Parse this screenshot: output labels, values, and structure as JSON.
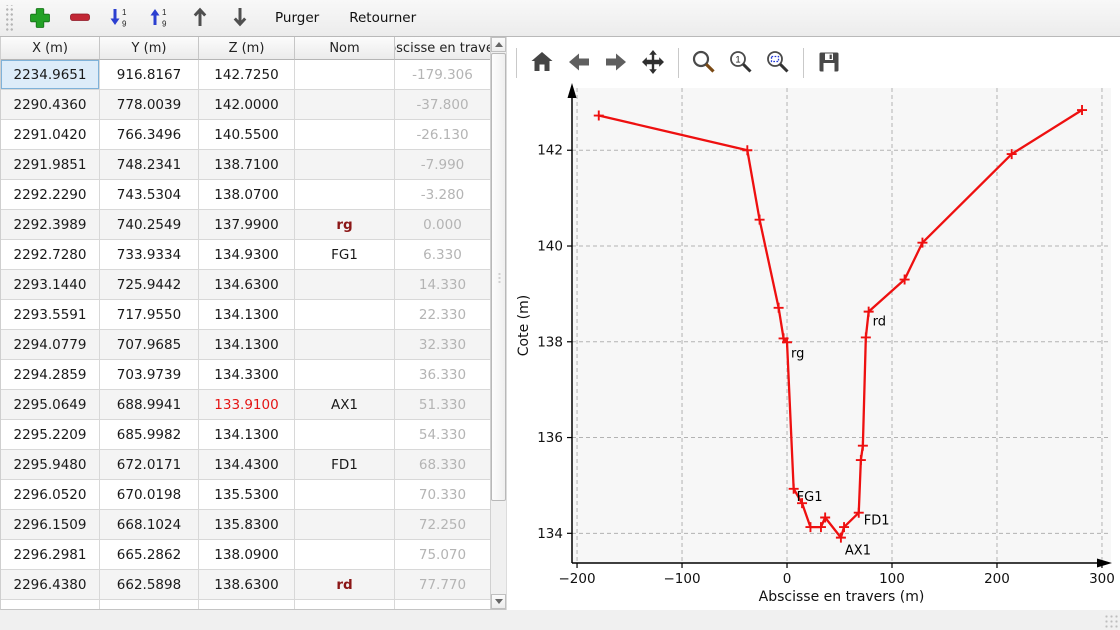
{
  "toolbar": {
    "purger_label": "Purger",
    "retourner_label": "Retourner",
    "icons": [
      "add-point",
      "remove-point",
      "sort-down-1-9",
      "sort-up-1-9",
      "move-up",
      "move-down"
    ]
  },
  "chart_toolbar": {
    "icons": [
      "home",
      "back",
      "forward",
      "pan",
      "zoom",
      "zoom-original",
      "zoom-region",
      "save"
    ]
  },
  "table": {
    "headers": [
      "X (m)",
      "Y (m)",
      "Z (m)",
      "Nom",
      "Abscisse en travers"
    ],
    "rows": [
      {
        "x": "2234.9651",
        "y": "916.8167",
        "z": "142.7250",
        "nom": "",
        "abscisse": "-179.306",
        "selected": true
      },
      {
        "x": "2290.4360",
        "y": "778.0039",
        "z": "142.0000",
        "nom": "",
        "abscisse": "-37.800"
      },
      {
        "x": "2291.0420",
        "y": "766.3496",
        "z": "140.5500",
        "nom": "",
        "abscisse": "-26.130"
      },
      {
        "x": "2291.9851",
        "y": "748.2341",
        "z": "138.7100",
        "nom": "",
        "abscisse": "-7.990"
      },
      {
        "x": "2292.2290",
        "y": "743.5304",
        "z": "138.0700",
        "nom": "",
        "abscisse": "-3.280"
      },
      {
        "x": "2292.3989",
        "y": "740.2549",
        "z": "137.9900",
        "nom": "rg",
        "nom_kind": "limit",
        "abscisse": "0.000"
      },
      {
        "x": "2292.7280",
        "y": "733.9334",
        "z": "134.9300",
        "nom": "FG1",
        "abscisse": "6.330"
      },
      {
        "x": "2293.1440",
        "y": "725.9442",
        "z": "134.6300",
        "nom": "",
        "abscisse": "14.330"
      },
      {
        "x": "2293.5591",
        "y": "717.9550",
        "z": "134.1300",
        "nom": "",
        "abscisse": "22.330"
      },
      {
        "x": "2294.0779",
        "y": "707.9685",
        "z": "134.1300",
        "nom": "",
        "abscisse": "32.330"
      },
      {
        "x": "2294.2859",
        "y": "703.9739",
        "z": "134.3300",
        "nom": "",
        "abscisse": "36.330"
      },
      {
        "x": "2295.0649",
        "y": "688.9941",
        "z": "133.9100",
        "nom": "AX1",
        "z_red": true,
        "abscisse": "51.330"
      },
      {
        "x": "2295.2209",
        "y": "685.9982",
        "z": "134.1300",
        "nom": "",
        "abscisse": "54.330"
      },
      {
        "x": "2295.9480",
        "y": "672.0171",
        "z": "134.4300",
        "nom": "FD1",
        "abscisse": "68.330"
      },
      {
        "x": "2296.0520",
        "y": "670.0198",
        "z": "135.5300",
        "nom": "",
        "abscisse": "70.330"
      },
      {
        "x": "2296.1509",
        "y": "668.1024",
        "z": "135.8300",
        "nom": "",
        "abscisse": "72.250"
      },
      {
        "x": "2296.2981",
        "y": "665.2862",
        "z": "138.0900",
        "nom": "",
        "abscisse": "75.070"
      },
      {
        "x": "2296.4380",
        "y": "662.5898",
        "z": "138.6300",
        "nom": "rd",
        "nom_kind": "limit",
        "abscisse": "77.770"
      }
    ]
  },
  "chart_data": {
    "type": "line",
    "xlabel": "Abscisse en travers (m)",
    "ylabel": "Cote (m)",
    "x_ticks": [
      -200,
      -100,
      0,
      100,
      200,
      300
    ],
    "y_ticks": [
      134,
      136,
      138,
      140,
      142
    ],
    "xlim": [
      -204.8,
      308.6
    ],
    "ylim": [
      133.38,
      143.3
    ],
    "grid": true,
    "line_color": "#ee1010",
    "marker": "+",
    "points": [
      {
        "x": -179.306,
        "z": 142.725
      },
      {
        "x": -37.8,
        "z": 142.0
      },
      {
        "x": -26.13,
        "z": 140.55
      },
      {
        "x": -7.99,
        "z": 138.71
      },
      {
        "x": -3.28,
        "z": 138.07
      },
      {
        "x": 0.0,
        "z": 137.99,
        "label": "rg"
      },
      {
        "x": 6.33,
        "z": 134.93,
        "label": "FG1"
      },
      {
        "x": 14.33,
        "z": 134.63
      },
      {
        "x": 22.33,
        "z": 134.13
      },
      {
        "x": 32.33,
        "z": 134.13
      },
      {
        "x": 36.33,
        "z": 134.33
      },
      {
        "x": 51.33,
        "z": 133.91,
        "label": "AX1"
      },
      {
        "x": 54.33,
        "z": 134.13
      },
      {
        "x": 68.33,
        "z": 134.43,
        "label": "FD1"
      },
      {
        "x": 70.33,
        "z": 135.53
      },
      {
        "x": 72.25,
        "z": 135.83
      },
      {
        "x": 75.07,
        "z": 138.09
      },
      {
        "x": 77.77,
        "z": 138.63,
        "label": "rd"
      },
      {
        "x": 112,
        "z": 139.3
      },
      {
        "x": 129,
        "z": 140.07
      },
      {
        "x": 214,
        "z": 141.92
      },
      {
        "x": 281,
        "z": 142.84
      }
    ]
  },
  "colors": {
    "line_red": "#ee1010",
    "limit_name_red": "#8b1717",
    "z_highlight_red": "#e41414",
    "muted_abscisse": "#b4b4b4",
    "selected_cell_bg": "#ddecf9",
    "selected_cell_border": "#7fb2d9"
  }
}
